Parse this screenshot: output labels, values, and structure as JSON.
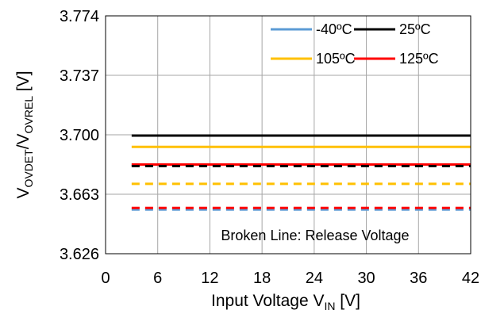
{
  "chart_data": {
    "type": "line",
    "xlabel": {
      "main": "Input Voltage V",
      "sub": "IN",
      "unit": " [V]"
    },
    "ylabel": {
      "v1": "V",
      "sub1": "OVDET",
      "slash": "/V",
      "sub2": "OVREL",
      "unit": " [V]"
    },
    "xlim": [
      0,
      42
    ],
    "ylim": [
      3.626,
      3.774
    ],
    "x_ticks": [
      "0",
      "6",
      "12",
      "18",
      "24",
      "30",
      "36",
      "42"
    ],
    "x_tick_values": [
      0,
      6,
      12,
      18,
      24,
      30,
      36,
      42
    ],
    "y_ticks": [
      "3.774",
      "3.737",
      "3.700",
      "3.663",
      "3.626"
    ],
    "y_tick_values": [
      3.774,
      3.737,
      3.7,
      3.663,
      3.626
    ],
    "grid": true,
    "legend_position": "top-right",
    "annotation": "Broken Line: Release Voltage",
    "series": [
      {
        "name": "-40ºC",
        "color": "#5b9bd5",
        "style": "solid",
        "x": [
          3,
          42
        ],
        "y": [
          3.6815,
          3.6815
        ]
      },
      {
        "name": "25ºC",
        "color": "#000000",
        "style": "solid",
        "x": [
          3,
          42
        ],
        "y": [
          3.6995,
          3.6995
        ]
      },
      {
        "name": "105ºC",
        "color": "#ffc000",
        "style": "solid",
        "x": [
          3,
          42
        ],
        "y": [
          3.6925,
          3.6925
        ]
      },
      {
        "name": "125ºC",
        "color": "#ff0000",
        "style": "solid",
        "x": [
          3,
          42
        ],
        "y": [
          3.6815,
          3.6815
        ]
      },
      {
        "color": "#5b9bd5",
        "style": "dashed",
        "x": [
          3,
          42
        ],
        "y": [
          3.6535,
          3.6535
        ]
      },
      {
        "color": "#000000",
        "style": "dashed",
        "x": [
          3,
          42
        ],
        "y": [
          3.6805,
          3.6805
        ]
      },
      {
        "color": "#ffc000",
        "style": "dashed",
        "x": [
          3,
          42
        ],
        "y": [
          3.6695,
          3.6695
        ]
      },
      {
        "color": "#ff0000",
        "style": "dashed",
        "x": [
          3,
          42
        ],
        "y": [
          3.6545,
          3.6545
        ]
      }
    ]
  }
}
